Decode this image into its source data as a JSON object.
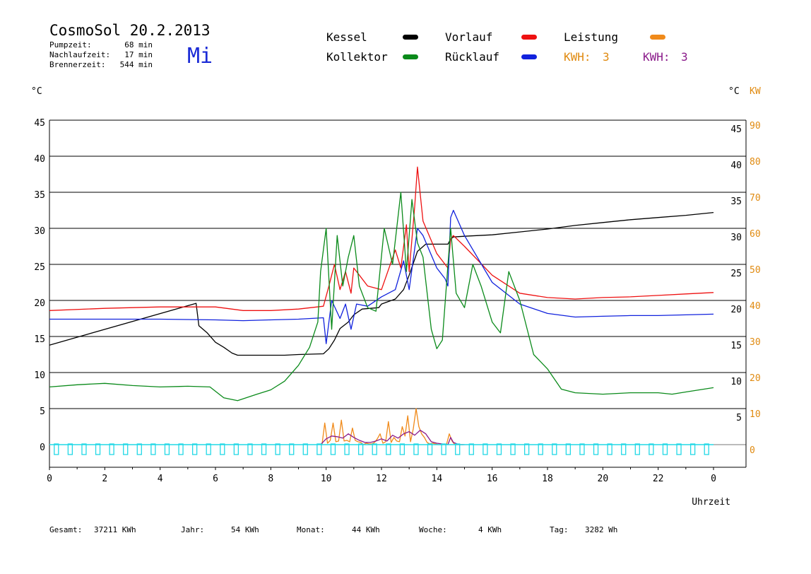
{
  "header": {
    "title": "CosmoSol 20.2.2013",
    "day": "Mi",
    "stats": [
      {
        "label": "Pumpzeit:",
        "value": "68 min"
      },
      {
        "label": "Nachlaufzeit:",
        "value": "17 min"
      },
      {
        "label": "Brennerzeit:",
        "value": "544 min"
      }
    ]
  },
  "legend": {
    "items": [
      {
        "name": "Kessel",
        "color": "#000000"
      },
      {
        "name": "Vorlauf",
        "color": "#ee1111"
      },
      {
        "name": "Leistung",
        "color": "#f08a1a"
      },
      {
        "name": "Kollektor",
        "color": "#0a8a1a"
      },
      {
        "name": "Rücklauf",
        "color": "#1122dd"
      }
    ],
    "kwh_orange": {
      "label": "KWH:",
      "value": "3",
      "color": "#e08a10"
    },
    "kwh_purple": {
      "label": "KWH:",
      "value": "3",
      "color": "#8a1a8a"
    }
  },
  "axes": {
    "left_unit": "°C",
    "right_unit": "°C",
    "right_unit_kw": "KW",
    "x_label": "Uhrzeit"
  },
  "footer": [
    {
      "label": "Gesamt:",
      "value": "37211 KWh"
    },
    {
      "label": "Jahr:",
      "value": "54 KWh"
    },
    {
      "label": "Monat:",
      "value": "44 KWh"
    },
    {
      "label": "Woche:",
      "value": "4 KWh"
    },
    {
      "label": "Tag:",
      "value": "3282 Wh"
    }
  ],
  "chart_data": {
    "type": "line",
    "xlabel": "Uhrzeit",
    "ylabel": "°C",
    "y2label": "KW",
    "xlim": [
      0,
      24
    ],
    "ylim": [
      0,
      45
    ],
    "y2lim": [
      0,
      90
    ],
    "x_ticks": [
      "0",
      "2",
      "4",
      "6",
      "8",
      "10",
      "12",
      "14",
      "16",
      "18",
      "20",
      "22",
      "0"
    ],
    "y_ticks": [
      "0",
      "5",
      "10",
      "15",
      "20",
      "25",
      "30",
      "35",
      "40",
      "45"
    ],
    "y_ticks_right": [
      "5",
      "10",
      "15",
      "20",
      "25",
      "30",
      "35",
      "40",
      "45"
    ],
    "y2_ticks": [
      "0",
      "10",
      "20",
      "30",
      "40",
      "50",
      "60",
      "70",
      "80",
      "90"
    ],
    "grid": "horizontal",
    "series": [
      {
        "name": "Kessel",
        "color": "#000000",
        "x": [
          0,
          5.3,
          5.4,
          5.7,
          6,
          6.3,
          6.6,
          6.8,
          7.5,
          8.5,
          9,
          9.9,
          10.1,
          10.3,
          10.5,
          10.8,
          11,
          11.3,
          11.6,
          11.9,
          12,
          12.5,
          12.8,
          13,
          13.3,
          13.6,
          14,
          14.4,
          14.5,
          14.6,
          15,
          16,
          17,
          18,
          19,
          20,
          21,
          22,
          23,
          24
        ],
        "y": [
          13.8,
          19.6,
          16.5,
          15.5,
          14.2,
          13.5,
          12.7,
          12.4,
          12.4,
          12.4,
          12.5,
          12.6,
          13.3,
          14.5,
          16.1,
          17,
          18,
          18.8,
          18.9,
          19,
          19.5,
          20.2,
          21.5,
          23.5,
          26.8,
          27.8,
          27.8,
          27.8,
          28.5,
          28.8,
          28.9,
          29.1,
          29.5,
          29.9,
          30.4,
          30.8,
          31.2,
          31.5,
          31.8,
          32.2
        ]
      },
      {
        "name": "Vorlauf",
        "color": "#ee1111",
        "x": [
          0,
          2,
          4,
          6,
          7,
          8,
          9,
          9.9,
          10.1,
          10.3,
          10.5,
          10.7,
          10.9,
          11,
          11.2,
          11.5,
          12,
          12.5,
          12.7,
          12.9,
          13,
          13.2,
          13.3,
          13.5,
          14,
          14.4,
          14.5,
          14.6,
          15,
          16,
          17,
          18,
          19,
          20,
          21,
          22,
          23,
          24
        ],
        "y": [
          18.6,
          18.9,
          19.1,
          19.1,
          18.6,
          18.6,
          18.8,
          19.2,
          22,
          25,
          21.5,
          24,
          21,
          24.5,
          23.5,
          22,
          21.5,
          27,
          24.5,
          30.5,
          24,
          33,
          38.5,
          31,
          26.5,
          24.5,
          28.5,
          29,
          27.5,
          23.5,
          21,
          20.4,
          20.2,
          20.4,
          20.5,
          20.7,
          20.9,
          21.1
        ]
      },
      {
        "name": "Rücklauf",
        "color": "#1122dd",
        "x": [
          0,
          2,
          4,
          6,
          7,
          8,
          9,
          9.9,
          10,
          10.2,
          10.5,
          10.7,
          10.9,
          11.1,
          11.5,
          12,
          12.5,
          12.8,
          13,
          13.3,
          13.5,
          14,
          14.3,
          14.4,
          14.5,
          14.6,
          15,
          16,
          17,
          18,
          19,
          20,
          21,
          22,
          23,
          24
        ],
        "y": [
          17.4,
          17.4,
          17.4,
          17.3,
          17.2,
          17.3,
          17.4,
          17.6,
          14,
          20,
          17.5,
          19.5,
          16,
          19.5,
          19.2,
          20.5,
          21.5,
          25.5,
          21.5,
          30,
          29,
          24.5,
          23,
          22,
          31.5,
          32.5,
          29,
          22.5,
          19.5,
          18.2,
          17.7,
          17.8,
          17.9,
          17.9,
          18,
          18.1
        ]
      },
      {
        "name": "Kollektor",
        "color": "#0a8a1a",
        "x": [
          0,
          1,
          2,
          3,
          4,
          5,
          5.8,
          6.3,
          6.8,
          7.5,
          8,
          8.5,
          9,
          9.4,
          9.7,
          9.8,
          10,
          10.2,
          10.4,
          10.6,
          10.8,
          11,
          11.2,
          11.5,
          11.8,
          12.1,
          12.4,
          12.7,
          12.9,
          13.1,
          13.3,
          13.5,
          13.8,
          14,
          14.2,
          14.5,
          14.7,
          15,
          15.3,
          15.6,
          16,
          16.3,
          16.6,
          17,
          17.5,
          18,
          18.5,
          19,
          20,
          21,
          22,
          22.5,
          23,
          24
        ],
        "y": [
          8,
          8.3,
          8.5,
          8.2,
          8,
          8.1,
          8,
          6.5,
          6.1,
          7,
          7.6,
          8.8,
          11,
          13.5,
          17,
          24,
          30,
          16,
          29,
          22,
          26,
          29,
          22,
          19,
          18.5,
          30,
          25,
          35,
          24,
          34,
          28,
          26,
          16,
          13.3,
          14.5,
          30,
          21,
          19,
          25,
          22,
          17,
          15.5,
          24,
          20,
          12.5,
          10.5,
          7.7,
          7.2,
          7,
          7.2,
          7.2,
          7,
          7.3,
          7.9
        ]
      },
      {
        "name": "Leistung",
        "color": "#f08a1a",
        "x": [
          9.8,
          9.85,
          9.95,
          10.05,
          10.15,
          10.25,
          10.35,
          10.45,
          10.55,
          10.65,
          10.75,
          10.85,
          10.95,
          11.05,
          11.15,
          11.25,
          11.35,
          11.45,
          11.55,
          11.65,
          11.75,
          11.85,
          11.95,
          12.05,
          12.15,
          12.25,
          12.35,
          12.45,
          12.55,
          12.65,
          12.75,
          12.85,
          12.95,
          13.05,
          13.15,
          13.25,
          13.35,
          13.45,
          13.55,
          13.65,
          13.75,
          13.85,
          13.95,
          14.05,
          14.15,
          14.25,
          14.35,
          14.45,
          14.55,
          14.65,
          14.75,
          14.85,
          14.95
        ],
        "y": [
          0,
          0,
          3,
          0.2,
          0.6,
          3,
          0.4,
          0.5,
          3.4,
          0.5,
          0.6,
          0.4,
          2.3,
          0.6,
          0.4,
          0.3,
          0,
          0.2,
          0.1,
          0.1,
          0.3,
          0.8,
          1.5,
          0.2,
          0.4,
          3.2,
          0.3,
          1,
          0.5,
          0.4,
          2.5,
          1.2,
          4,
          0.4,
          2.2,
          5,
          2.5,
          1.5,
          1,
          0.3,
          0.1,
          0.2,
          0.1,
          0,
          0,
          0,
          0,
          1.5,
          0.5,
          0,
          0,
          0,
          0
        ]
      },
      {
        "name": "Leistung-KWH",
        "color": "#8a1a8a",
        "x": [
          9.8,
          10,
          10.2,
          10.4,
          10.6,
          10.8,
          11,
          11.2,
          11.4,
          11.6,
          11.8,
          12,
          12.2,
          12.4,
          12.6,
          12.8,
          13,
          13.2,
          13.4,
          13.6,
          13.8,
          14,
          14.2,
          14.4,
          14.5,
          14.6,
          14.8,
          15
        ],
        "y": [
          0,
          0.8,
          1.2,
          1.1,
          0.9,
          1.5,
          1,
          0.6,
          0.3,
          0.3,
          0.5,
          0.8,
          0.5,
          1.3,
          0.9,
          1.5,
          1.8,
          1.3,
          2,
          1.5,
          0.4,
          0.2,
          0.1,
          0,
          1,
          0.3,
          0,
          0
        ]
      },
      {
        "name": "Pumpe",
        "color": "#22d8e6",
        "x": [
          0,
          24
        ],
        "y": [
          0,
          0
        ]
      }
    ]
  }
}
